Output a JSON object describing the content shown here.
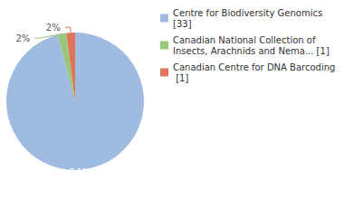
{
  "chart_data": {
    "type": "pie",
    "categories": [
      "Centre for Biodiversity Genomics [33]",
      "Canadian National Collection of Insects, Arachnids and Nema... [1]",
      "Canadian Centre for DNA Barcoding [1]"
    ],
    "values": [
      94,
      2,
      2
    ],
    "value_labels": [
      "94%",
      "2%",
      "2%"
    ],
    "colors": [
      "#9fbbe0",
      "#98c77c",
      "#e0735a"
    ],
    "data_labels": true,
    "legend": "top-right"
  }
}
